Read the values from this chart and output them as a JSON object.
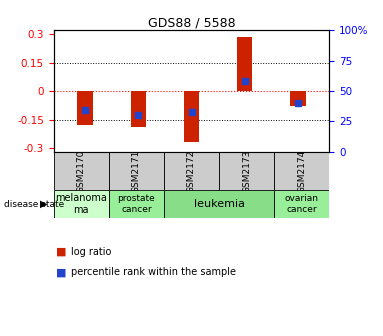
{
  "title": "GDS88 / 5588",
  "samples": [
    "GSM2170",
    "GSM2171",
    "GSM2172",
    "GSM2173",
    "GSM2174"
  ],
  "log_ratio": [
    -0.18,
    -0.19,
    -0.27,
    0.285,
    -0.08
  ],
  "percentile_rank": [
    -0.1,
    -0.125,
    -0.11,
    0.055,
    -0.065
  ],
  "ylim": [
    -0.32,
    0.32
  ],
  "yticks_left": [
    -0.3,
    -0.15,
    0,
    0.15,
    0.3
  ],
  "yticks_right": [
    0,
    25,
    50,
    75,
    100
  ],
  "bar_color": "#cc2200",
  "marker_color": "#2244cc",
  "bg_color": "#ffffff",
  "disease_states": [
    {
      "label": "melanoma\n  ma",
      "display": "melanoma\nma",
      "span": [
        0,
        1
      ],
      "color": "#ccffcc"
    },
    {
      "label": "prostate\ncancer",
      "span": [
        1,
        2
      ],
      "color": "#99ee99"
    },
    {
      "label": "leukemia",
      "span": [
        2,
        4
      ],
      "color": "#88dd88"
    },
    {
      "label": "ovarian\ncancer",
      "span": [
        4,
        5
      ],
      "color": "#99ee99"
    }
  ],
  "legend_log_ratio": "log ratio",
  "legend_percentile": "percentile rank within the sample",
  "disease_state_label": "disease state",
  "bar_width": 0.3
}
